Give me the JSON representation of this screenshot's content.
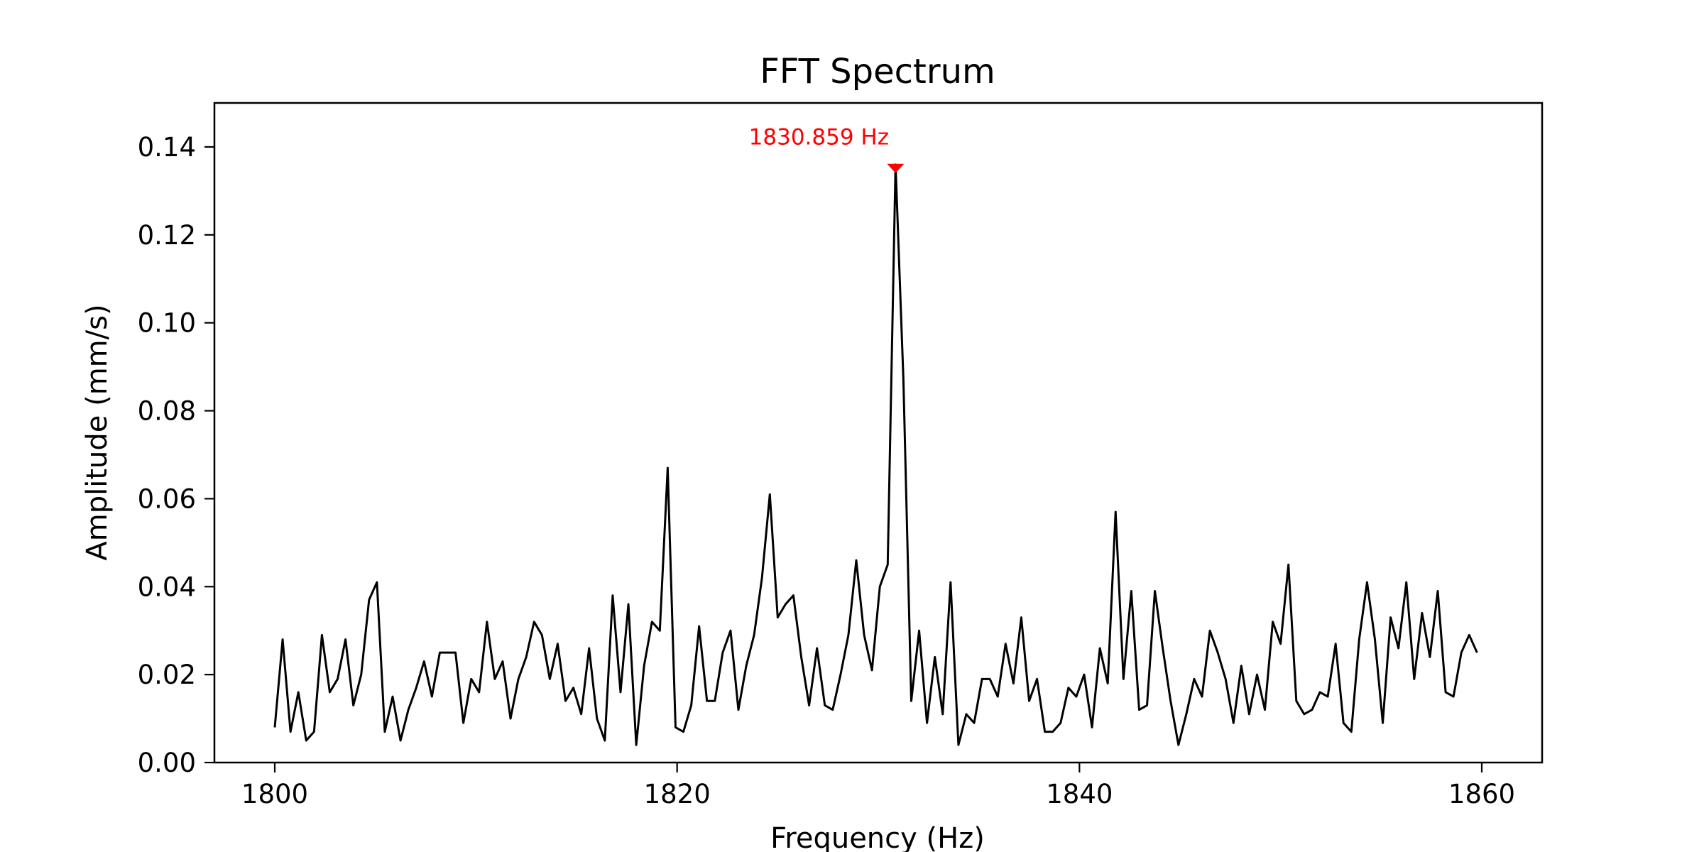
{
  "chart_data": {
    "type": "line",
    "title": "FFT Spectrum",
    "xlabel": "Frequency (Hz)",
    "ylabel": "Amplitude (mm/s)",
    "xlim": [
      1797,
      1863
    ],
    "ylim": [
      0,
      0.15
    ],
    "x_ticks": [
      1800,
      1820,
      1840,
      1860
    ],
    "y_ticks": [
      0.0,
      0.02,
      0.04,
      0.06,
      0.08,
      0.1,
      0.12,
      0.14
    ],
    "x_tick_labels": [
      "1800",
      "1820",
      "1840",
      "1860"
    ],
    "y_tick_labels": [
      "0.00",
      "0.02",
      "0.04",
      "0.06",
      "0.08",
      "0.10",
      "0.12",
      "0.14"
    ],
    "grid": false,
    "legend": "none",
    "colors": {
      "line": "#000000",
      "peak": "#ff0000"
    },
    "series": [
      {
        "x_start": 1800,
        "x_step": 0.390625,
        "values": [
          0.008,
          0.028,
          0.007,
          0.016,
          0.005,
          0.007,
          0.029,
          0.016,
          0.019,
          0.028,
          0.013,
          0.02,
          0.037,
          0.041,
          0.007,
          0.015,
          0.005,
          0.012,
          0.017,
          0.023,
          0.015,
          0.025,
          0.025,
          0.025,
          0.009,
          0.019,
          0.016,
          0.032,
          0.019,
          0.023,
          0.01,
          0.019,
          0.024,
          0.032,
          0.029,
          0.019,
          0.027,
          0.014,
          0.017,
          0.011,
          0.026,
          0.01,
          0.005,
          0.038,
          0.016,
          0.036,
          0.004,
          0.022,
          0.032,
          0.03,
          0.067,
          0.008,
          0.007,
          0.013,
          0.031,
          0.014,
          0.014,
          0.025,
          0.03,
          0.012,
          0.022,
          0.029,
          0.042,
          0.061,
          0.033,
          0.036,
          0.038,
          0.024,
          0.013,
          0.026,
          0.013,
          0.012,
          0.02,
          0.029,
          0.046,
          0.029,
          0.021,
          0.04,
          0.045,
          0.136,
          0.087,
          0.014,
          0.03,
          0.009,
          0.024,
          0.011,
          0.041,
          0.004,
          0.011,
          0.009,
          0.019,
          0.019,
          0.015,
          0.027,
          0.018,
          0.033,
          0.014,
          0.019,
          0.007,
          0.007,
          0.009,
          0.017,
          0.015,
          0.02,
          0.008,
          0.026,
          0.018,
          0.057,
          0.019,
          0.039,
          0.012,
          0.013,
          0.039,
          0.026,
          0.014,
          0.004,
          0.011,
          0.019,
          0.015,
          0.03,
          0.025,
          0.019,
          0.009,
          0.022,
          0.011,
          0.02,
          0.012,
          0.032,
          0.027,
          0.045,
          0.014,
          0.011,
          0.012,
          0.016,
          0.015,
          0.027,
          0.009,
          0.007,
          0.028,
          0.041,
          0.028,
          0.009,
          0.033,
          0.026,
          0.041,
          0.019,
          0.034,
          0.024,
          0.039,
          0.016,
          0.015,
          0.025,
          0.029,
          0.025
        ]
      }
    ],
    "peak": {
      "x": 1830.859,
      "y": 0.136,
      "label": "1830.859 Hz"
    }
  }
}
